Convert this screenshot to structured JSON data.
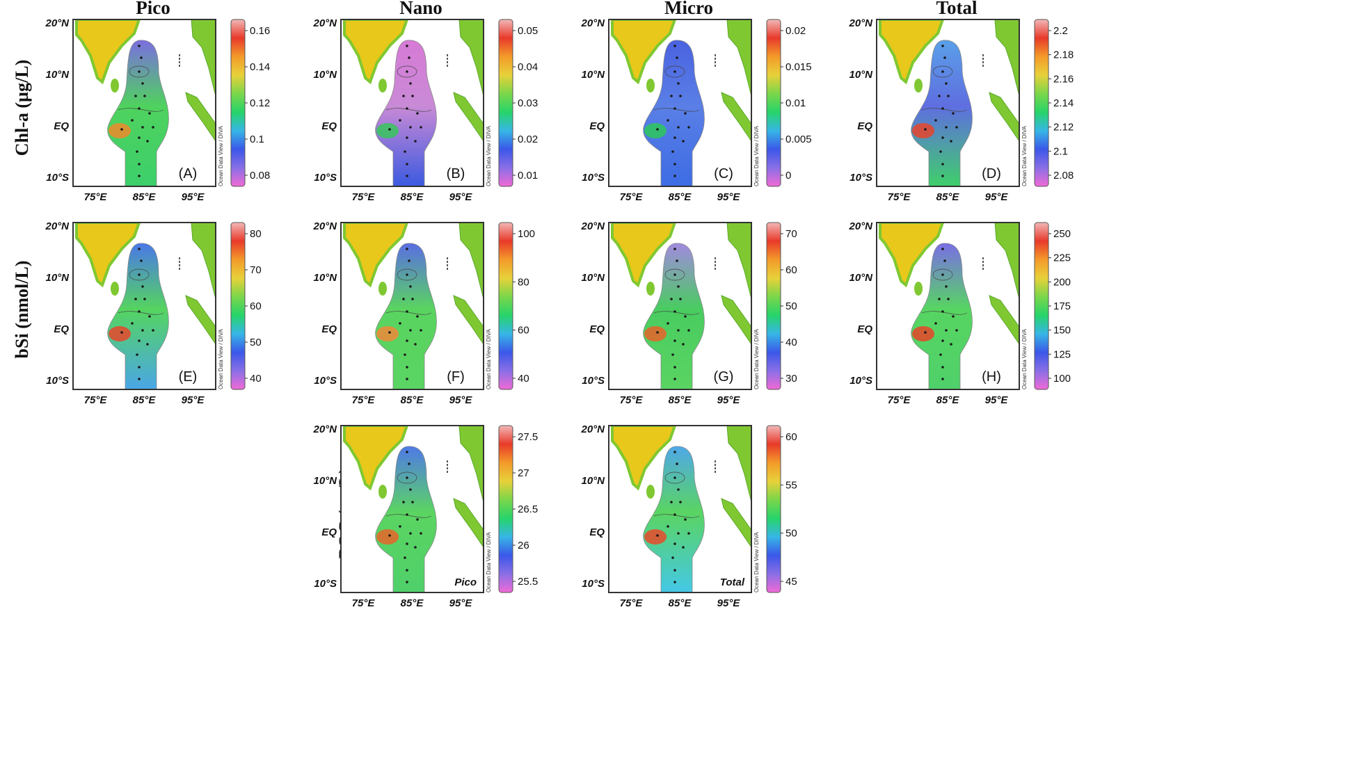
{
  "column_titles": [
    "Pico",
    "Nano",
    "Micro",
    "Total"
  ],
  "row_labels": [
    "Chl-a (µg/L)",
    "bSi (nmol/L)",
    "POC (µg/L)"
  ],
  "lat_labels": [
    "20°N",
    "10°N",
    "EQ",
    "10°S"
  ],
  "lon_labels": [
    "75°E",
    "85°E",
    "95°E"
  ],
  "watermark": "Ocean Data View / DIVA",
  "colors": {
    "land": "#7fc832",
    "highland": "#e8c81a",
    "frame": "#333333",
    "station": "#1a1a1a"
  },
  "panels": [
    {
      "id": "A",
      "letter": "(A)",
      "cbar": [
        "0.16",
        "0.14",
        "0.12",
        "0.1",
        "0.08"
      ],
      "inner": ""
    },
    {
      "id": "B",
      "letter": "(B)",
      "cbar": [
        "0.05",
        "0.04",
        "0.03",
        "0.02",
        "0.01"
      ],
      "inner": ""
    },
    {
      "id": "C",
      "letter": "(C)",
      "cbar": [
        "0.02",
        "0.015",
        "0.01",
        "0.005",
        "0"
      ],
      "inner": ""
    },
    {
      "id": "D",
      "letter": "(D)",
      "cbar": [
        "2.2",
        "2.18",
        "2.16",
        "2.14",
        "2.12",
        "2.1",
        "2.08"
      ],
      "inner": ""
    },
    {
      "id": "E",
      "letter": "(E)",
      "cbar": [
        "80",
        "70",
        "60",
        "50",
        "40"
      ],
      "inner": ""
    },
    {
      "id": "F",
      "letter": "(F)",
      "cbar": [
        "100",
        "80",
        "60",
        "40"
      ],
      "inner": ""
    },
    {
      "id": "G",
      "letter": "(G)",
      "cbar": [
        "70",
        "60",
        "50",
        "40",
        "30"
      ],
      "inner": ""
    },
    {
      "id": "H",
      "letter": "(H)",
      "cbar": [
        "250",
        "225",
        "200",
        "175",
        "150",
        "125",
        "100"
      ],
      "inner": ""
    },
    {
      "id": "I",
      "letter": "",
      "cbar": [
        "27.5",
        "27",
        "26.5",
        "26",
        "25.5"
      ],
      "inner": "Pico"
    },
    {
      "id": "J",
      "letter": "",
      "cbar": [
        "60",
        "55",
        "50",
        "45"
      ],
      "inner": "Total"
    }
  ]
}
